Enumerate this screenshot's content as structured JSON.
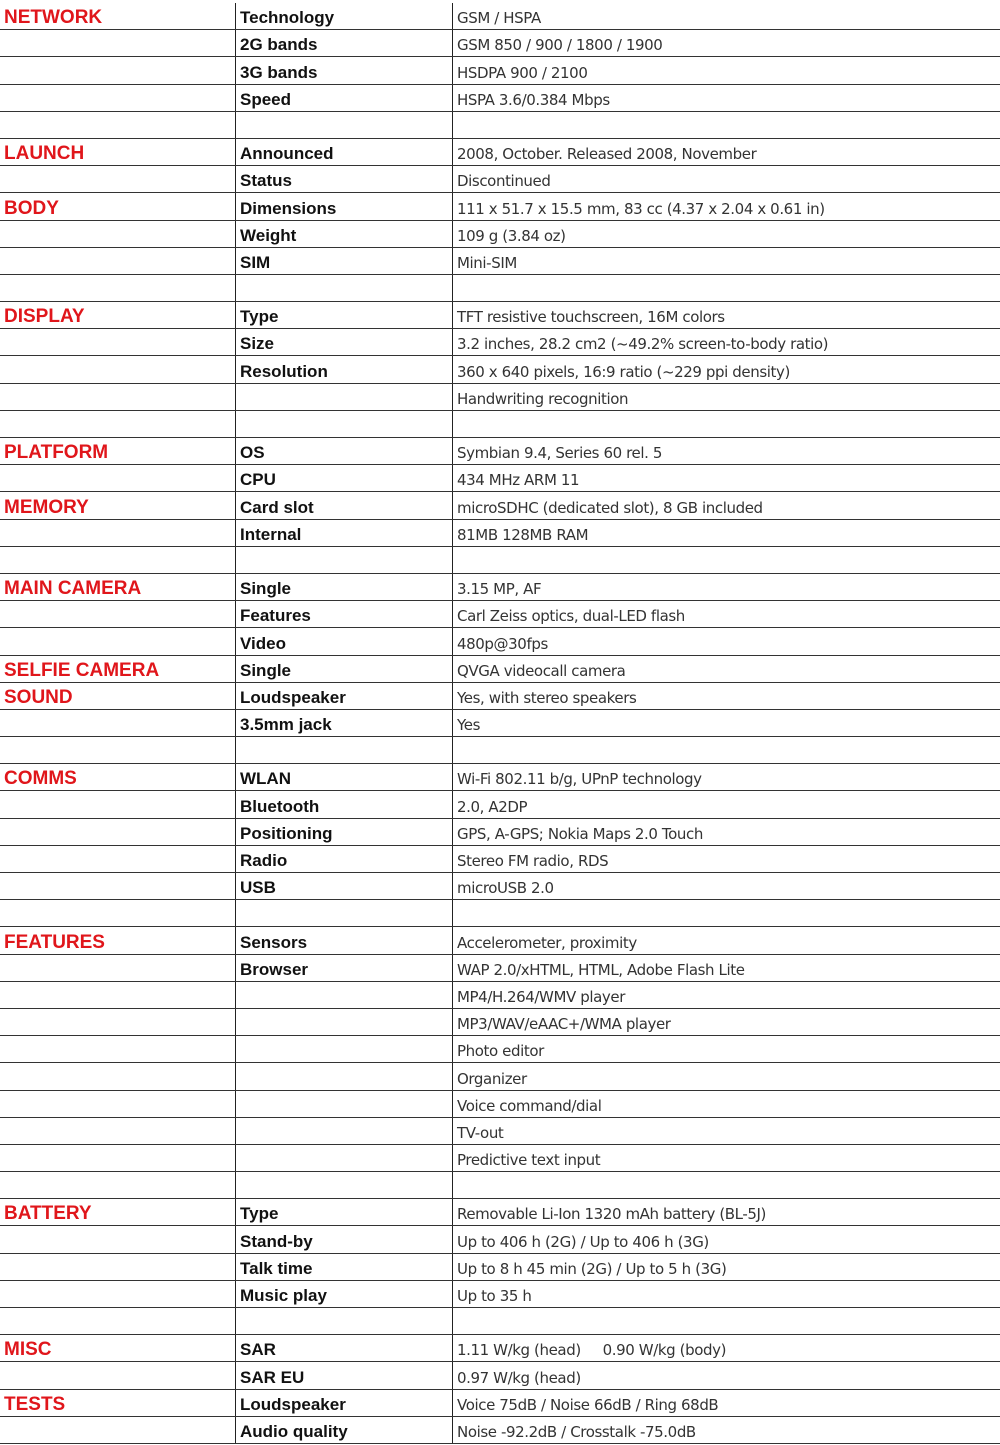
{
  "colors": {
    "category": "#e0161b",
    "label": "#111111",
    "value": "#333333",
    "border": "#222222"
  },
  "rows": [
    {
      "category": "NETWORK",
      "label": "Technology",
      "value": "GSM / HSPA"
    },
    {
      "category": "",
      "label": "2G bands",
      "value": "GSM 850 / 900 / 1800 / 1900"
    },
    {
      "category": "",
      "label": "3G bands",
      "value": "HSDPA 900 / 2100"
    },
    {
      "category": "",
      "label": "Speed",
      "value": "HSPA 3.6/0.384 Mbps"
    },
    {
      "category": "",
      "label": "",
      "value": ""
    },
    {
      "category": "LAUNCH",
      "label": "Announced",
      "value": "2008, October. Released 2008, November"
    },
    {
      "category": "",
      "label": "Status",
      "value": "Discontinued"
    },
    {
      "category": "BODY",
      "label": "Dimensions",
      "value": "111 x 51.7 x 15.5 mm, 83 cc (4.37 x 2.04 x 0.61 in)"
    },
    {
      "category": "",
      "label": "Weight",
      "value": "109 g (3.84 oz)"
    },
    {
      "category": "",
      "label": "SIM",
      "value": "Mini-SIM"
    },
    {
      "category": "",
      "label": "",
      "value": ""
    },
    {
      "category": "DISPLAY",
      "label": "Type",
      "value": "TFT resistive touchscreen, 16M colors"
    },
    {
      "category": "",
      "label": "Size",
      "value": "3.2 inches, 28.2 cm2 (~49.2% screen-to-body ratio)"
    },
    {
      "category": "",
      "label": "Resolution",
      "value": "360 x 640 pixels, 16:9 ratio (~229 ppi density)"
    },
    {
      "category": "",
      "label": "",
      "value": "Handwriting recognition"
    },
    {
      "category": "",
      "label": "",
      "value": ""
    },
    {
      "category": "PLATFORM",
      "label": "OS",
      "value": "Symbian 9.4, Series 60 rel. 5"
    },
    {
      "category": "",
      "label": "CPU",
      "value": "434 MHz ARM 11"
    },
    {
      "category": "MEMORY",
      "label": "Card slot",
      "value": "microSDHC (dedicated slot), 8 GB included"
    },
    {
      "category": "",
      "label": "Internal",
      "value": "81MB 128MB RAM"
    },
    {
      "category": "",
      "label": "",
      "value": ""
    },
    {
      "category": "MAIN CAMERA",
      "label": "Single",
      "value": "3.15 MP, AF"
    },
    {
      "category": "",
      "label": "Features",
      "value": "Carl Zeiss optics, dual-LED flash"
    },
    {
      "category": "",
      "label": "Video",
      "value": "480p@30fps"
    },
    {
      "category": "SELFIE CAMERA",
      "label": "Single",
      "value": "QVGA videocall camera"
    },
    {
      "category": "SOUND",
      "label": "Loudspeaker",
      "value": "Yes, with stereo speakers"
    },
    {
      "category": "",
      "label": "3.5mm jack",
      "value": "Yes"
    },
    {
      "category": "",
      "label": "",
      "value": ""
    },
    {
      "category": "COMMS",
      "label": "WLAN",
      "value": "Wi-Fi 802.11 b/g, UPnP technology"
    },
    {
      "category": "",
      "label": "Bluetooth",
      "value": "2.0, A2DP"
    },
    {
      "category": "",
      "label": "Positioning",
      "value": "GPS, A-GPS; Nokia Maps 2.0 Touch"
    },
    {
      "category": "",
      "label": "Radio",
      "value": "Stereo FM radio, RDS"
    },
    {
      "category": "",
      "label": "USB",
      "value": "microUSB 2.0"
    },
    {
      "category": "",
      "label": "",
      "value": ""
    },
    {
      "category": "FEATURES",
      "label": "Sensors",
      "value": "Accelerometer, proximity"
    },
    {
      "category": "",
      "label": "Browser",
      "value": "WAP 2.0/xHTML, HTML, Adobe Flash Lite"
    },
    {
      "category": "",
      "label": "",
      "value": "MP4/H.264/WMV player"
    },
    {
      "category": "",
      "label": "",
      "value": "MP3/WAV/eAAC+/WMA player"
    },
    {
      "category": "",
      "label": "",
      "value": "Photo editor"
    },
    {
      "category": "",
      "label": "",
      "value": "Organizer"
    },
    {
      "category": "",
      "label": "",
      "value": "Voice command/dial"
    },
    {
      "category": "",
      "label": "",
      "value": "TV-out"
    },
    {
      "category": "",
      "label": "",
      "value": "Predictive text input"
    },
    {
      "category": "",
      "label": "",
      "value": ""
    },
    {
      "category": "BATTERY",
      "label": "Type",
      "value": "Removable Li-Ion 1320 mAh battery (BL-5J)"
    },
    {
      "category": "",
      "label": "Stand-by",
      "value": "Up to 406 h (2G) / Up to 406 h (3G)"
    },
    {
      "category": "",
      "label": "Talk time",
      "value": "Up to 8 h 45 min (2G) / Up to 5 h (3G)"
    },
    {
      "category": "",
      "label": "Music play",
      "value": "Up to 35 h"
    },
    {
      "category": "",
      "label": "",
      "value": ""
    },
    {
      "category": "MISC",
      "label": "SAR",
      "value": "1.11 W/kg (head)     0.90 W/kg (body)"
    },
    {
      "category": "",
      "label": "SAR EU",
      "value": "0.97 W/kg (head)"
    },
    {
      "category": "TESTS",
      "label": "Loudspeaker",
      "value": "Voice 75dB / Noise 66dB / Ring 68dB"
    },
    {
      "category": "",
      "label": "Audio quality",
      "value": "Noise -92.2dB / Crosstalk -75.0dB"
    }
  ]
}
